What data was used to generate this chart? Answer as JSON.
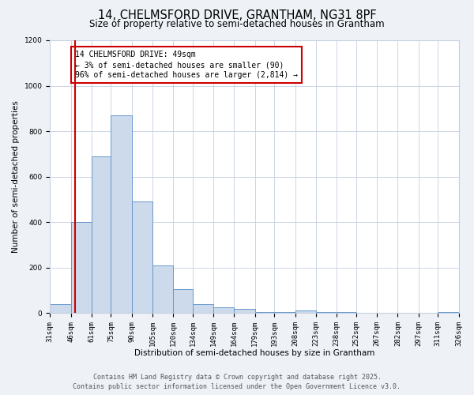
{
  "title": "14, CHELMSFORD DRIVE, GRANTHAM, NG31 8PF",
  "subtitle": "Size of property relative to semi-detached houses in Grantham",
  "xlabel": "Distribution of semi-detached houses by size in Grantham",
  "ylabel": "Number of semi-detached properties",
  "bin_labels": [
    "31sqm",
    "46sqm",
    "61sqm",
    "75sqm",
    "90sqm",
    "105sqm",
    "120sqm",
    "134sqm",
    "149sqm",
    "164sqm",
    "179sqm",
    "193sqm",
    "208sqm",
    "223sqm",
    "238sqm",
    "252sqm",
    "267sqm",
    "282sqm",
    "297sqm",
    "311sqm",
    "326sqm"
  ],
  "bin_edges": [
    31,
    46,
    61,
    75,
    90,
    105,
    120,
    134,
    149,
    164,
    179,
    193,
    208,
    223,
    238,
    252,
    267,
    282,
    297,
    311,
    326
  ],
  "bar_heights": [
    40,
    400,
    690,
    870,
    490,
    210,
    105,
    40,
    25,
    20,
    5,
    5,
    10,
    3,
    3,
    2,
    2,
    2,
    2,
    5
  ],
  "bar_color": "#ccdaeb",
  "bar_edge_color": "#6699cc",
  "property_size": 49,
  "vline_color": "#cc0000",
  "annotation_title": "14 CHELMSFORD DRIVE: 49sqm",
  "annotation_line1": "← 3% of semi-detached houses are smaller (90)",
  "annotation_line2": "96% of semi-detached houses are larger (2,814) →",
  "annotation_box_color": "#cc0000",
  "ylim": [
    0,
    1200
  ],
  "yticks": [
    0,
    200,
    400,
    600,
    800,
    1000,
    1200
  ],
  "footer_line1": "Contains HM Land Registry data © Crown copyright and database right 2025.",
  "footer_line2": "Contains public sector information licensed under the Open Government Licence v3.0.",
  "bg_color": "#eef2f7",
  "plot_bg_color": "#ffffff",
  "grid_color": "#c5cfe0",
  "title_fontsize": 10.5,
  "subtitle_fontsize": 8.5,
  "axis_label_fontsize": 7.5,
  "tick_fontsize": 6.5,
  "footer_fontsize": 6.0,
  "annotation_fontsize": 7.0
}
